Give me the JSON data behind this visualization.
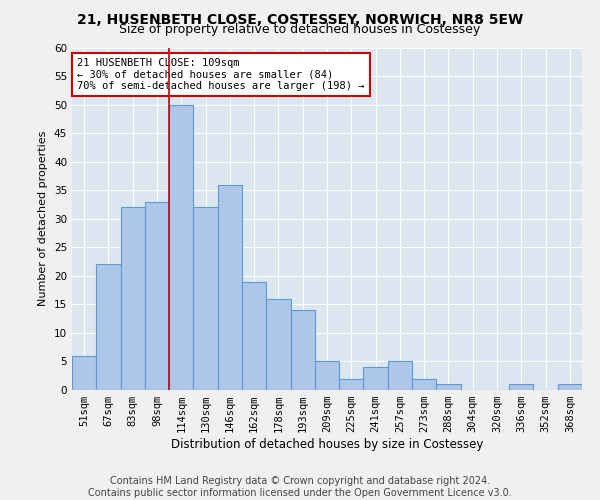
{
  "title1": "21, HUSENBETH CLOSE, COSTESSEY, NORWICH, NR8 5EW",
  "title2": "Size of property relative to detached houses in Costessey",
  "xlabel": "Distribution of detached houses by size in Costessey",
  "ylabel": "Number of detached properties",
  "bar_labels": [
    "51sqm",
    "67sqm",
    "83sqm",
    "98sqm",
    "114sqm",
    "130sqm",
    "146sqm",
    "162sqm",
    "178sqm",
    "193sqm",
    "209sqm",
    "225sqm",
    "241sqm",
    "257sqm",
    "273sqm",
    "288sqm",
    "304sqm",
    "320sqm",
    "336sqm",
    "352sqm",
    "368sqm"
  ],
  "bar_values": [
    6,
    22,
    32,
    33,
    50,
    32,
    36,
    19,
    16,
    14,
    5,
    2,
    4,
    5,
    2,
    1,
    0,
    0,
    1,
    0,
    1
  ],
  "bar_color": "#aec6e8",
  "bar_edge_color": "#5b9bd5",
  "annotation_text": "21 HUSENBETH CLOSE: 109sqm\n← 30% of detached houses are smaller (84)\n70% of semi-detached houses are larger (198) →",
  "vline_x_index": 3.5,
  "vline_color": "#cc0000",
  "annotation_box_color": "#ffffff",
  "annotation_box_edge_color": "#cc0000",
  "ylim": [
    0,
    60
  ],
  "yticks": [
    0,
    5,
    10,
    15,
    20,
    25,
    30,
    35,
    40,
    45,
    50,
    55,
    60
  ],
  "footer1": "Contains HM Land Registry data © Crown copyright and database right 2024.",
  "footer2": "Contains public sector information licensed under the Open Government Licence v3.0.",
  "bg_color": "#dce6f1",
  "grid_color": "#ffffff",
  "fig_bg_color": "#f0f0f0",
  "title1_fontsize": 10,
  "title2_fontsize": 9,
  "xlabel_fontsize": 8.5,
  "ylabel_fontsize": 8,
  "tick_fontsize": 7.5,
  "footer_fontsize": 7,
  "annot_fontsize": 7.5
}
